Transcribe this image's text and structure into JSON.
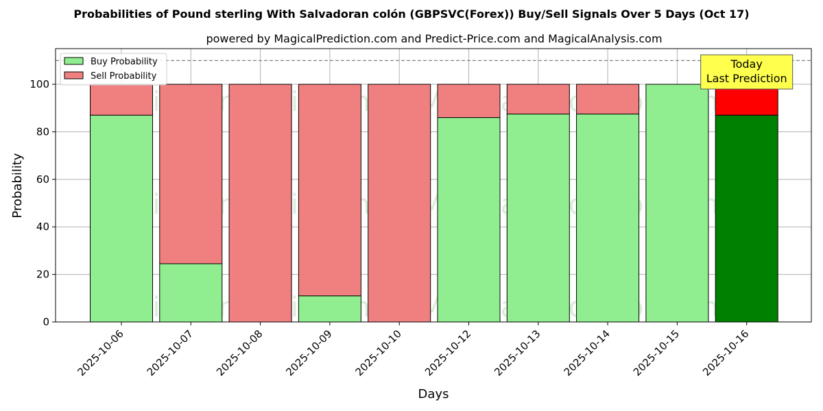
{
  "chart_data": {
    "type": "bar",
    "stacked": true,
    "title": "Probabilities of Pound sterling With Salvadoran colón (GBPSVC(Forex)) Buy/Sell Signals Over 5 Days (Oct 17)",
    "subtitle": "powered by MagicalPrediction.com and Predict-Price.com and MagicalAnalysis.com",
    "xlabel": "Days",
    "ylabel": "Probability",
    "ylim": [
      0,
      115
    ],
    "yticks": [
      0,
      20,
      40,
      60,
      80,
      100
    ],
    "grid": true,
    "legend_position": "top-left",
    "reference_line": 110,
    "categories": [
      "2025-10-06",
      "2025-10-07",
      "2025-10-08",
      "2025-10-09",
      "2025-10-10",
      "2025-10-12",
      "2025-10-13",
      "2025-10-14",
      "2025-10-15",
      "2025-10-16"
    ],
    "series": [
      {
        "name": "Buy Probability",
        "color": "#90ee90",
        "highlight_color": "#008000",
        "values": [
          87,
          24.5,
          0,
          11,
          0,
          86,
          87.5,
          87.5,
          100,
          87
        ]
      },
      {
        "name": "Sell Probability",
        "color": "#f08080",
        "highlight_color": "#ff0000",
        "values": [
          13,
          75.5,
          100,
          89,
          100,
          14,
          12.5,
          12.5,
          0,
          13
        ]
      }
    ],
    "annotation": {
      "lines": [
        "Today",
        "Last Prediction"
      ],
      "category": "2025-10-16",
      "color": "#ffff4d"
    },
    "watermarks": [
      "MagicalAnalysis.com",
      "MagicalPrediction.com"
    ]
  }
}
